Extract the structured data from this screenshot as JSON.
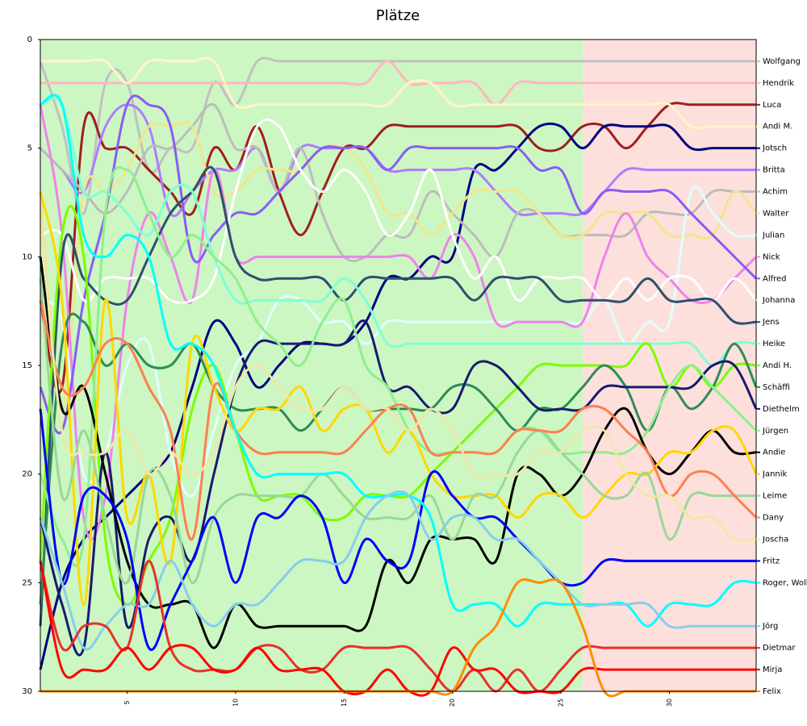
{
  "chart_data": {
    "type": "line",
    "title": "Plätze",
    "x": [
      1,
      2,
      3,
      4,
      5,
      6,
      7,
      8,
      9,
      10,
      11,
      12,
      13,
      14,
      15,
      16,
      17,
      18,
      19,
      20,
      21,
      22,
      23,
      24,
      25,
      26,
      27,
      28,
      29,
      30,
      31,
      32,
      33,
      34
    ],
    "xlim": [
      1,
      34
    ],
    "xticks": [
      5,
      10,
      15,
      20,
      25,
      30
    ],
    "ylim": [
      0,
      30
    ],
    "yticks": [
      0,
      5,
      10,
      15,
      20,
      25,
      30
    ],
    "y_inverted": true,
    "series": [
      {
        "name": "Wolfgang",
        "color": "#c0c0c0",
        "values": [
          1,
          4,
          8,
          2,
          2,
          6,
          5,
          5,
          2,
          3,
          1,
          1,
          1,
          1,
          1,
          1,
          1,
          1,
          1,
          1,
          1,
          1,
          1,
          1,
          1,
          1,
          1,
          1,
          1,
          1,
          1,
          1,
          1,
          1
        ]
      },
      {
        "name": "Hendrik",
        "color": "#ffb6c1",
        "values": [
          2,
          2,
          2,
          2,
          2,
          2,
          2,
          2,
          2,
          2,
          2,
          2,
          2,
          2,
          2,
          2,
          1,
          2,
          2,
          2,
          2,
          3,
          2,
          2,
          2,
          2,
          2,
          2,
          2,
          2,
          2,
          2,
          2,
          2
        ]
      },
      {
        "name": "Luca",
        "color": "#a01e1e",
        "values": [
          12,
          16,
          4,
          5,
          5,
          6,
          7,
          8,
          5,
          6,
          4,
          7,
          9,
          7,
          5,
          5,
          4,
          4,
          4,
          4,
          4,
          4,
          4,
          5,
          5,
          4,
          4,
          5,
          4,
          3,
          3,
          3,
          3,
          3
        ]
      },
      {
        "name": "Andi M.",
        "color": "#fff5c8",
        "values": [
          1,
          1,
          1,
          1,
          2,
          1,
          1,
          1,
          1,
          3,
          3,
          3,
          3,
          3,
          3,
          3,
          3,
          2,
          2,
          3,
          3,
          3,
          3,
          3,
          3,
          3,
          3,
          3,
          3,
          3,
          4,
          4,
          4,
          4
        ]
      },
      {
        "name": "Jotsch",
        "color": "#000080",
        "values": [
          29,
          25,
          23,
          22,
          21,
          20,
          19,
          16,
          13,
          14,
          16,
          15,
          14,
          14,
          14,
          13,
          11,
          11,
          10,
          10,
          6,
          6,
          5,
          4,
          4,
          5,
          4,
          4,
          4,
          4,
          5,
          5,
          5,
          5
        ]
      },
      {
        "name": "Britta",
        "color": "#b07cff",
        "values": [
          5,
          6,
          7,
          4,
          3,
          4,
          8,
          7,
          6,
          6,
          5,
          7,
          5,
          5,
          5,
          5,
          6,
          6,
          6,
          6,
          6,
          7,
          8,
          8,
          8,
          8,
          7,
          6,
          6,
          6,
          6,
          6,
          6,
          6
        ]
      },
      {
        "name": "Achim",
        "color": "#bcbcbc",
        "values": [
          5,
          6,
          7,
          8,
          7,
          5,
          5,
          4,
          3,
          5,
          5,
          7,
          5,
          8,
          10,
          10,
          9,
          9,
          7,
          8,
          9,
          10,
          8,
          8,
          9,
          9,
          9,
          9,
          8,
          8,
          8,
          7,
          7,
          7
        ]
      },
      {
        "name": "Walter",
        "color": "#f0e68c",
        "values": [
          7,
          17,
          7,
          7,
          6,
          4,
          4,
          4,
          7,
          7,
          6,
          6,
          6,
          5,
          5,
          6,
          8,
          8,
          9,
          8,
          7,
          7,
          7,
          8,
          9,
          9,
          8,
          8,
          8,
          9,
          9,
          9,
          7,
          8
        ]
      },
      {
        "name": "Julian",
        "color": "#e0ffff",
        "values": [
          12,
          13,
          20,
          19,
          15,
          14,
          19,
          21,
          18,
          15,
          14,
          12,
          12,
          13,
          13,
          14,
          13,
          13,
          13,
          13,
          13,
          13,
          13,
          13,
          13,
          13,
          12,
          14,
          13,
          13,
          7,
          8,
          9,
          9
        ]
      },
      {
        "name": "Nick",
        "color": "#ee82ee",
        "values": [
          3,
          9,
          22,
          21,
          12,
          8,
          10,
          12,
          6,
          10,
          10,
          10,
          10,
          10,
          10,
          10,
          10,
          10,
          11,
          9,
          10,
          13,
          13,
          13,
          13,
          13,
          10,
          8,
          10,
          11,
          12,
          12,
          11,
          10
        ]
      },
      {
        "name": "Alfred",
        "color": "#8a5cf5",
        "values": [
          16,
          18,
          12,
          8,
          3,
          3,
          4,
          10,
          9,
          8,
          8,
          7,
          6,
          5,
          5,
          5,
          6,
          5,
          5,
          5,
          5,
          5,
          5,
          6,
          6,
          8,
          7,
          7,
          7,
          7,
          8,
          9,
          10,
          11
        ]
      },
      {
        "name": "Johanna",
        "color": "#ffffff",
        "values": [
          9,
          9,
          12,
          11,
          11,
          11,
          12,
          12,
          11,
          7,
          4,
          4,
          6,
          7,
          6,
          7,
          9,
          8,
          6,
          9,
          11,
          10,
          12,
          11,
          11,
          11,
          12,
          11,
          12,
          11,
          11,
          12,
          11,
          12
        ]
      },
      {
        "name": "Jens",
        "color": "#2f4f6f",
        "values": [
          27,
          10,
          11,
          12,
          12,
          10,
          8,
          7,
          6,
          10,
          11,
          11,
          11,
          11,
          12,
          11,
          11,
          11,
          11,
          11,
          12,
          11,
          11,
          11,
          12,
          12,
          12,
          12,
          11,
          12,
          12,
          12,
          13,
          13
        ]
      },
      {
        "name": "Heike",
        "color": "#7fffd4",
        "values": [
          3,
          3,
          7,
          7,
          8,
          9,
          7,
          7,
          10,
          12,
          12,
          12,
          12,
          12,
          11,
          12,
          14,
          14,
          14,
          14,
          14,
          14,
          14,
          14,
          14,
          14,
          14,
          14,
          14,
          14,
          14,
          15,
          14,
          14
        ]
      },
      {
        "name": "Andi H.",
        "color": "#7cfc00",
        "values": [
          24,
          9,
          10,
          23,
          26,
          24,
          22,
          17,
          15,
          18,
          21,
          21,
          21,
          22,
          22,
          21,
          21,
          21,
          20,
          19,
          18,
          17,
          16,
          15,
          15,
          15,
          15,
          15,
          14,
          16,
          15,
          16,
          15,
          15
        ]
      },
      {
        "name": "Schäffi",
        "color": "#2e8b57",
        "values": [
          26,
          14,
          13,
          15,
          14,
          15,
          15,
          14,
          16,
          17,
          17,
          17,
          18,
          17,
          16,
          17,
          17,
          17,
          17,
          16,
          16,
          17,
          18,
          17,
          17,
          16,
          15,
          16,
          18,
          16,
          17,
          16,
          14,
          16
        ]
      },
      {
        "name": "Diethelm",
        "color": "#191970",
        "values": [
          22,
          26,
          28,
          19,
          27,
          23,
          22,
          24,
          20,
          16,
          14,
          14,
          14,
          14,
          14,
          13,
          16,
          16,
          17,
          17,
          15,
          15,
          16,
          17,
          17,
          17,
          16,
          16,
          16,
          16,
          16,
          15,
          15,
          17
        ]
      },
      {
        "name": "Jürgen",
        "color": "#90ee90",
        "values": [
          20,
          23,
          23,
          8,
          6,
          8,
          10,
          9,
          10,
          11,
          13,
          14,
          15,
          13,
          12,
          15,
          16,
          18,
          19,
          19,
          19,
          19,
          18,
          18,
          19,
          19,
          19,
          19,
          18,
          16,
          15,
          16,
          17,
          18
        ]
      },
      {
        "name": "Andie",
        "color": "#000000",
        "values": [
          10,
          17,
          16,
          20,
          24,
          26,
          26,
          26,
          28,
          26,
          27,
          27,
          27,
          27,
          27,
          27,
          24,
          25,
          23,
          23,
          23,
          24,
          20,
          20,
          21,
          20,
          18,
          17,
          19,
          20,
          19,
          18,
          19,
          19
        ]
      },
      {
        "name": "Jannik",
        "color": "#ffd700",
        "values": [
          7,
          12,
          26,
          12,
          22,
          20,
          24,
          14,
          16,
          18,
          17,
          17,
          16,
          18,
          17,
          17,
          19,
          18,
          20,
          21,
          21,
          21,
          22,
          21,
          21,
          22,
          21,
          20,
          20,
          19,
          19,
          18,
          18,
          20
        ]
      },
      {
        "name": "Leime",
        "color": "#98d898",
        "values": [
          11,
          21,
          18,
          22,
          25,
          20,
          21,
          25,
          22,
          21,
          21,
          21,
          21,
          20,
          21,
          22,
          22,
          22,
          21,
          23,
          21,
          21,
          19,
          18,
          19,
          20,
          21,
          21,
          20,
          23,
          21,
          21,
          21,
          21
        ]
      },
      {
        "name": "Dany",
        "color": "#ff7f50",
        "values": [
          12,
          16,
          16,
          14,
          14,
          16,
          18,
          23,
          16,
          18,
          19,
          19,
          19,
          19,
          19,
          18,
          17,
          17,
          19,
          19,
          19,
          19,
          18,
          18,
          18,
          17,
          17,
          18,
          19,
          21,
          20,
          20,
          21,
          22
        ]
      },
      {
        "name": "Joscha",
        "color": "#eee8aa",
        "values": [
          8,
          18,
          19,
          19,
          18,
          20,
          19,
          20,
          19,
          16,
          15,
          16,
          17,
          17,
          16,
          17,
          17,
          18,
          17,
          18,
          20,
          20,
          20,
          19,
          19,
          18,
          18,
          20,
          21,
          21,
          22,
          22,
          23,
          23
        ]
      },
      {
        "name": "Fritz",
        "color": "#0000ff",
        "values": [
          17,
          25,
          21,
          21,
          23,
          28,
          26,
          24,
          22,
          25,
          22,
          22,
          21,
          22,
          25,
          23,
          24,
          24,
          20,
          21,
          22,
          22,
          23,
          24,
          25,
          25,
          24,
          24,
          24,
          24,
          24,
          24,
          24,
          24
        ]
      },
      {
        "name": "Roger, Wolk",
        "color": "#00ffff",
        "values": [
          3,
          3,
          9,
          10,
          9,
          10,
          14,
          14,
          15,
          18,
          20,
          20,
          20,
          20,
          20,
          21,
          21,
          21,
          22,
          26,
          26,
          26,
          27,
          26,
          26,
          26,
          26,
          26,
          27,
          26,
          26,
          26,
          25,
          25
        ]
      },
      {
        "name": "Jörg",
        "color": "#87ceeb",
        "values": [
          22,
          25,
          28,
          27,
          26,
          26,
          24,
          26,
          27,
          26,
          26,
          25,
          24,
          24,
          24,
          22,
          21,
          21,
          23,
          22,
          22,
          23,
          23,
          24,
          25,
          26,
          26,
          26,
          26,
          27,
          27,
          27,
          27,
          27
        ]
      },
      {
        "name": "Dietmar",
        "color": "#e8302a",
        "values": [
          24,
          28,
          27,
          27,
          28,
          24,
          28,
          29,
          29,
          29,
          28,
          28,
          29,
          29,
          28,
          28,
          28,
          28,
          29,
          30,
          29,
          30,
          29,
          30,
          29,
          28,
          28,
          28,
          28,
          28,
          28,
          28,
          28,
          28
        ]
      },
      {
        "name": "Mirja",
        "color": "#ff0000",
        "values": [
          24,
          29,
          29,
          29,
          28,
          29,
          28,
          28,
          29,
          29,
          28,
          29,
          29,
          29,
          30,
          30,
          29,
          30,
          30,
          28,
          29,
          29,
          30,
          30,
          30,
          29,
          29,
          29,
          29,
          29,
          29,
          29,
          29,
          29
        ]
      },
      {
        "name": "Felix",
        "color": "#ff8c00",
        "values": [
          30,
          30,
          30,
          30,
          30,
          30,
          30,
          30,
          30,
          30,
          30,
          30,
          30,
          30,
          30,
          30,
          30,
          30,
          30,
          30,
          28,
          27,
          25,
          25,
          25,
          27,
          30,
          30,
          30,
          30,
          30,
          30,
          30,
          30
        ]
      }
    ]
  }
}
